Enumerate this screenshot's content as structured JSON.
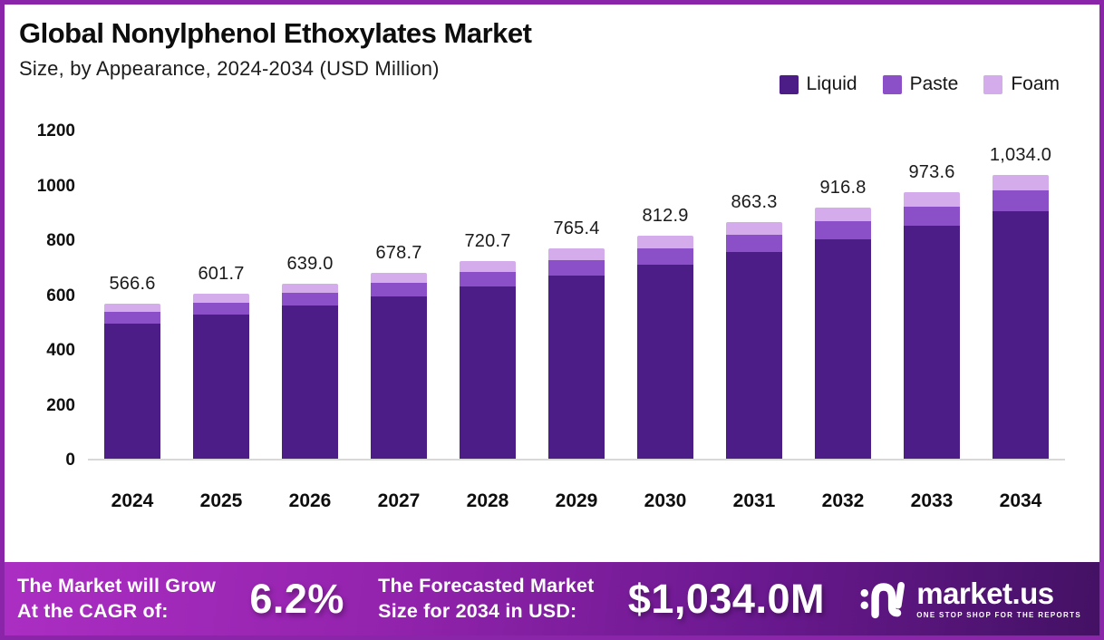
{
  "page": {
    "title": "Global Nonylphenol Ethoxylates Market",
    "subtitle": "Size, by Appearance, 2024-2034 (USD Million)"
  },
  "legend": [
    {
      "label": "Liquid",
      "color": "#4c1d87"
    },
    {
      "label": "Paste",
      "color": "#8b50c8"
    },
    {
      "label": "Foam",
      "color": "#d4abeb"
    }
  ],
  "chart_data": {
    "type": "bar",
    "stacked": true,
    "title": "Global Nonylphenol Ethoxylates Market Size, by Appearance, 2024-2034 (USD Million)",
    "categories": [
      "2024",
      "2025",
      "2026",
      "2027",
      "2028",
      "2029",
      "2030",
      "2031",
      "2032",
      "2033",
      "2034"
    ],
    "totals": [
      566.6,
      601.7,
      639.0,
      678.7,
      720.7,
      765.4,
      812.9,
      863.3,
      916.8,
      973.6,
      1034.0
    ],
    "total_labels": [
      "566.6",
      "601.7",
      "639.0",
      "678.7",
      "720.7",
      "765.4",
      "812.9",
      "863.3",
      "916.8",
      "973.6",
      "1,034.0"
    ],
    "series": [
      {
        "name": "Liquid",
        "color": "#4c1d87",
        "values": [
          494.1,
          524.7,
          557.2,
          591.8,
          628.4,
          667.4,
          708.8,
          752.8,
          799.4,
          849.0,
          901.6
        ]
      },
      {
        "name": "Paste",
        "color": "#8b50c8",
        "values": [
          41.4,
          43.9,
          46.6,
          49.5,
          52.6,
          55.9,
          59.3,
          63.0,
          66.9,
          71.1,
          75.5
        ]
      },
      {
        "name": "Foam",
        "color": "#d4abeb",
        "values": [
          31.1,
          33.1,
          35.2,
          37.4,
          39.7,
          42.1,
          44.8,
          47.5,
          50.5,
          53.5,
          56.9
        ]
      }
    ],
    "xlabel": "",
    "ylabel": "",
    "ylim": [
      0,
      1200
    ],
    "yticks": [
      0,
      200,
      400,
      600,
      800,
      1000,
      1200
    ],
    "grid": false,
    "legend_position": "top-right"
  },
  "footer": {
    "cagr_label_line1": "The Market will Grow",
    "cagr_label_line2": "At the CAGR of:",
    "cagr_value": "6.2%",
    "forecast_label_line1": "The Forecasted Market",
    "forecast_label_line2": "Size for 2034 in USD:",
    "forecast_value": "$1,034.0M",
    "brand_name": "market.us",
    "brand_tagline": "ONE STOP SHOP FOR THE REPORTS"
  }
}
